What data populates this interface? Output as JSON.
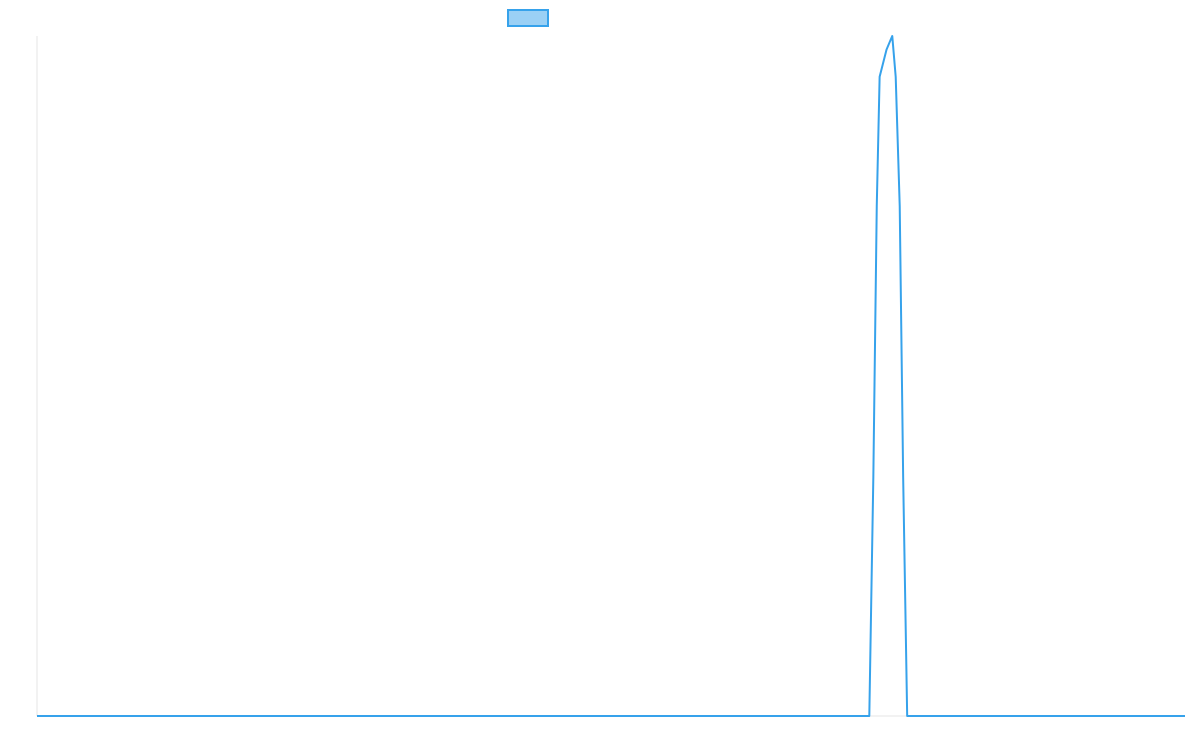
{
  "chart_data": {
    "type": "line",
    "x_range": [
      0,
      1000
    ],
    "ylim": [
      0,
      1
    ],
    "grid": false,
    "legend_position": "top",
    "series": [
      {
        "color": "#36a2eb",
        "fill_color": "#9ad0f5",
        "points": [
          [
            0,
            0
          ],
          [
            725,
            0
          ],
          [
            728.5,
            0.35
          ],
          [
            731.5,
            0.75
          ],
          [
            734,
            0.94
          ],
          [
            745,
            1.0
          ],
          [
            740,
            0.98
          ],
          [
            748,
            0.94
          ],
          [
            751.5,
            0.75
          ],
          [
            754.5,
            0.35
          ],
          [
            758,
            0
          ],
          [
            1000,
            0
          ]
        ]
      }
    ]
  }
}
